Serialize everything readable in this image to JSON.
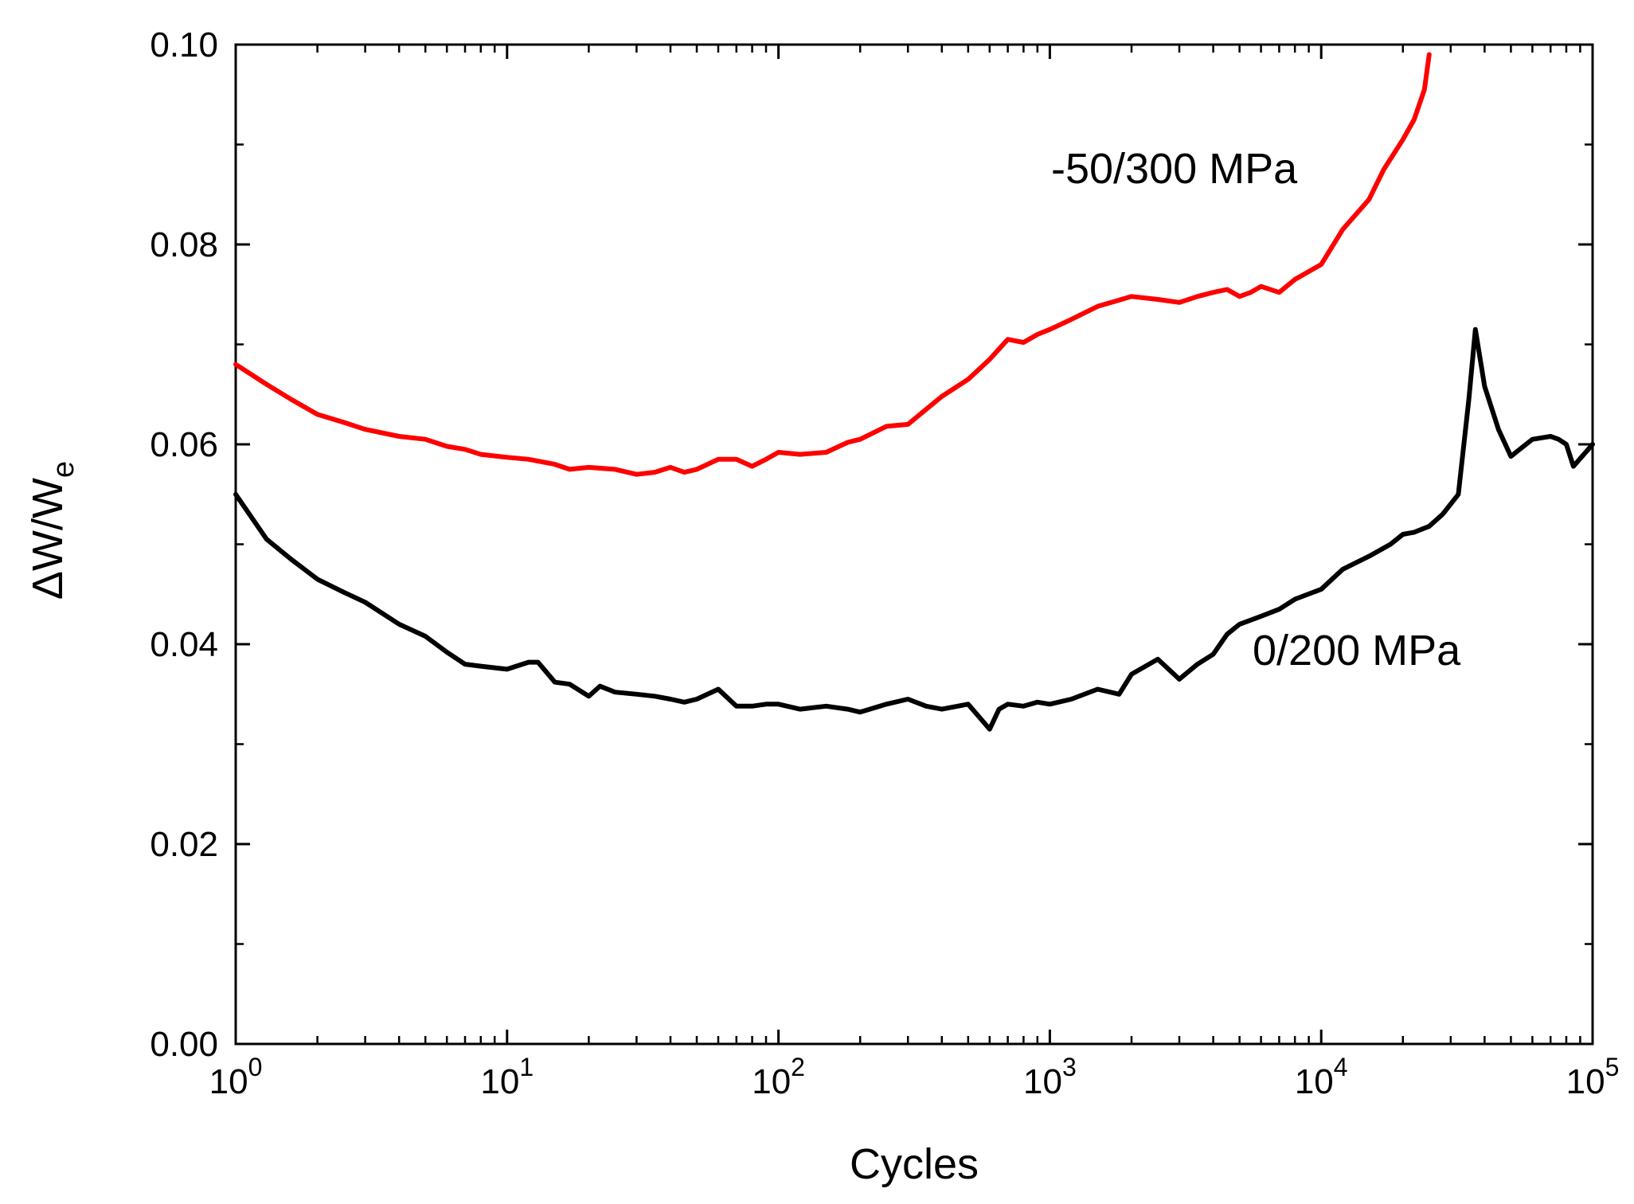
{
  "chart_data": {
    "type": "line",
    "title": "",
    "xlabel": "Cycles",
    "ylabel_main": "ΔW/W",
    "ylabel_sub": "e",
    "xscale": "log",
    "xlim": [
      1,
      100000
    ],
    "ylim": [
      0.0,
      0.1
    ],
    "x_tick_labels": [
      {
        "base": "10",
        "exp": "0",
        "value": 1
      },
      {
        "base": "10",
        "exp": "1",
        "value": 10
      },
      {
        "base": "10",
        "exp": "2",
        "value": 100
      },
      {
        "base": "10",
        "exp": "3",
        "value": 1000
      },
      {
        "base": "10",
        "exp": "4",
        "value": 10000
      },
      {
        "base": "10",
        "exp": "5",
        "value": 100000
      }
    ],
    "y_tick_labels": [
      "0.00",
      "0.02",
      "0.04",
      "0.06",
      "0.08",
      "0.10"
    ],
    "y_ticks": [
      0.0,
      0.02,
      0.04,
      0.06,
      0.08,
      0.1
    ],
    "y_minor_ticks": [
      0.01,
      0.03,
      0.05,
      0.07,
      0.09
    ],
    "grid": false,
    "series": [
      {
        "name": "-50/300 MPa",
        "color": "#ff0000",
        "x": [
          1,
          1.3,
          1.6,
          2,
          2.5,
          3,
          4,
          5,
          6,
          7,
          8,
          10,
          12,
          15,
          17,
          20,
          25,
          30,
          35,
          40,
          45,
          50,
          60,
          70,
          80,
          90,
          100,
          120,
          150,
          180,
          200,
          250,
          300,
          350,
          400,
          500,
          600,
          700,
          800,
          900,
          1000,
          1200,
          1500,
          2000,
          2500,
          3000,
          3500,
          4000,
          4500,
          5000,
          5500,
          6000,
          7000,
          8000,
          10000,
          12000,
          15000,
          17000,
          20000,
          22000,
          24000,
          25000
        ],
        "y": [
          0.068,
          0.066,
          0.0645,
          0.063,
          0.0622,
          0.0615,
          0.0608,
          0.0605,
          0.0598,
          0.0595,
          0.059,
          0.0587,
          0.0585,
          0.058,
          0.0575,
          0.0577,
          0.0575,
          0.057,
          0.0572,
          0.0577,
          0.0572,
          0.0575,
          0.0585,
          0.0585,
          0.0578,
          0.0585,
          0.0592,
          0.059,
          0.0592,
          0.0602,
          0.0605,
          0.0618,
          0.062,
          0.0635,
          0.0648,
          0.0665,
          0.0685,
          0.0705,
          0.0702,
          0.071,
          0.0715,
          0.0725,
          0.0738,
          0.0748,
          0.0745,
          0.0742,
          0.0748,
          0.0752,
          0.0755,
          0.0748,
          0.0752,
          0.0758,
          0.0752,
          0.0765,
          0.078,
          0.0815,
          0.0845,
          0.0875,
          0.0905,
          0.0925,
          0.0955,
          0.099
        ]
      },
      {
        "name": "0/200 MPa",
        "color": "#000000",
        "x": [
          1,
          1.3,
          1.6,
          2,
          2.5,
          3,
          4,
          5,
          6,
          7,
          8,
          10,
          12,
          13,
          15,
          17,
          20,
          22,
          25,
          30,
          35,
          40,
          45,
          50,
          60,
          70,
          80,
          90,
          100,
          120,
          150,
          180,
          200,
          250,
          300,
          350,
          400,
          500,
          600,
          650,
          700,
          800,
          900,
          1000,
          1200,
          1500,
          1800,
          2000,
          2500,
          3000,
          3500,
          4000,
          4500,
          5000,
          6000,
          7000,
          8000,
          10000,
          12000,
          15000,
          18000,
          20000,
          22000,
          25000,
          28000,
          32000,
          35000,
          37000,
          40000,
          45000,
          50000,
          60000,
          70000,
          75000,
          80000,
          85000,
          100000
        ],
        "y": [
          0.055,
          0.0505,
          0.0485,
          0.0465,
          0.0452,
          0.0442,
          0.042,
          0.0408,
          0.0392,
          0.038,
          0.0378,
          0.0375,
          0.0382,
          0.0382,
          0.0362,
          0.036,
          0.0348,
          0.0358,
          0.0352,
          0.035,
          0.0348,
          0.0345,
          0.0342,
          0.0345,
          0.0355,
          0.0338,
          0.0338,
          0.034,
          0.034,
          0.0335,
          0.0338,
          0.0335,
          0.0332,
          0.034,
          0.0345,
          0.0338,
          0.0335,
          0.034,
          0.0315,
          0.0335,
          0.034,
          0.0338,
          0.0342,
          0.034,
          0.0345,
          0.0355,
          0.035,
          0.037,
          0.0385,
          0.0365,
          0.038,
          0.039,
          0.041,
          0.042,
          0.0428,
          0.0435,
          0.0445,
          0.0455,
          0.0475,
          0.0488,
          0.05,
          0.051,
          0.0512,
          0.0518,
          0.053,
          0.055,
          0.0645,
          0.0715,
          0.0658,
          0.0615,
          0.0588,
          0.0605,
          0.0608,
          0.0605,
          0.06,
          0.0578,
          0.06
        ]
      }
    ],
    "annotations": [
      {
        "text": "-50/300 MPa",
        "series": 0
      },
      {
        "text": "0/200 MPa",
        "series": 1
      }
    ]
  }
}
